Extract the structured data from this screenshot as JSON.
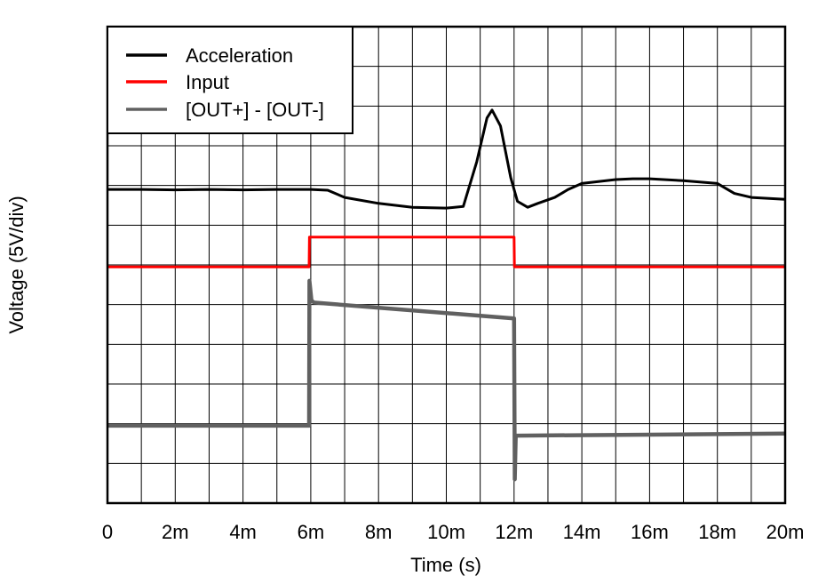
{
  "chart_data": {
    "type": "line",
    "xlabel": "Time (s)",
    "ylabel": "Voltage (5V/div)",
    "xlim": [
      0,
      20
    ],
    "ylim": [
      0,
      12
    ],
    "x_unit_suffix": "m",
    "x_ticks": [
      {
        "value": 0,
        "label": "0"
      },
      {
        "value": 2,
        "label": "2m"
      },
      {
        "value": 4,
        "label": "4m"
      },
      {
        "value": 6,
        "label": "6m"
      },
      {
        "value": 8,
        "label": "8m"
      },
      {
        "value": 10,
        "label": "10m"
      },
      {
        "value": 12,
        "label": "12m"
      },
      {
        "value": 14,
        "label": "14m"
      },
      {
        "value": 16,
        "label": "16m"
      },
      {
        "value": 18,
        "label": "18m"
      },
      {
        "value": 20,
        "label": "20m"
      }
    ],
    "x_grid_step": 1,
    "y_divisions": 12,
    "grid": true,
    "legend_position": "top-left",
    "series": [
      {
        "name": "Acceleration",
        "color": "#000000",
        "points": [
          [
            0,
            7.9
          ],
          [
            1,
            7.9
          ],
          [
            2,
            7.89
          ],
          [
            3,
            7.9
          ],
          [
            4,
            7.89
          ],
          [
            5,
            7.9
          ],
          [
            6,
            7.9
          ],
          [
            6.5,
            7.88
          ],
          [
            7,
            7.7
          ],
          [
            8,
            7.55
          ],
          [
            9,
            7.45
          ],
          [
            10,
            7.43
          ],
          [
            10.5,
            7.47
          ],
          [
            10.9,
            8.6
          ],
          [
            11.2,
            9.7
          ],
          [
            11.35,
            9.9
          ],
          [
            11.6,
            9.5
          ],
          [
            11.9,
            8.2
          ],
          [
            12.1,
            7.6
          ],
          [
            12.4,
            7.45
          ],
          [
            12.7,
            7.55
          ],
          [
            13.2,
            7.7
          ],
          [
            13.6,
            7.9
          ],
          [
            14,
            8.05
          ],
          [
            15,
            8.15
          ],
          [
            15.5,
            8.17
          ],
          [
            16,
            8.17
          ],
          [
            17,
            8.12
          ],
          [
            18,
            8.05
          ],
          [
            18.5,
            7.8
          ],
          [
            19,
            7.7
          ],
          [
            20,
            7.65
          ]
        ]
      },
      {
        "name": "Input",
        "color": "#ff0000",
        "points": [
          [
            0,
            5.95
          ],
          [
            5.95,
            5.95
          ],
          [
            5.96,
            6.7
          ],
          [
            12.0,
            6.7
          ],
          [
            12.01,
            5.95
          ],
          [
            20,
            5.95
          ]
        ]
      },
      {
        "name": "[OUT+] - [OUT-]",
        "color": "#606060",
        "points": [
          [
            0,
            1.95
          ],
          [
            5.95,
            1.95
          ],
          [
            5.96,
            5.6
          ],
          [
            6.02,
            5.1
          ],
          [
            6.1,
            5.05
          ],
          [
            12.0,
            4.65
          ],
          [
            12.02,
            0.6
          ],
          [
            12.05,
            1.7
          ],
          [
            20,
            1.75
          ]
        ]
      }
    ]
  }
}
